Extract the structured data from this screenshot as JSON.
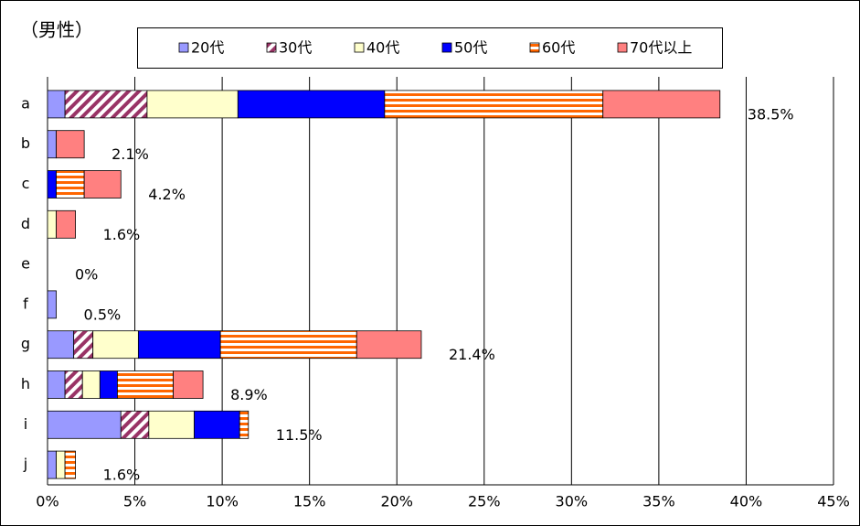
{
  "chart_data": {
    "type": "stacked-bar-horizontal",
    "title": "（男性）",
    "categories": [
      "a",
      "b",
      "c",
      "d",
      "e",
      "f",
      "g",
      "h",
      "i",
      "j"
    ],
    "series": [
      {
        "name": "20代",
        "color": "#9999ff",
        "pattern": "solid",
        "values": [
          1.0,
          0.5,
          0,
          0,
          0,
          0.5,
          1.5,
          1.0,
          4.2,
          0.5
        ]
      },
      {
        "name": "30代",
        "color": "#993366",
        "pattern": "diagonal",
        "values": [
          4.7,
          0,
          0,
          0,
          0,
          0,
          1.1,
          1.0,
          1.6,
          0
        ]
      },
      {
        "name": "40代",
        "color": "#ffffcc",
        "pattern": "solid",
        "values": [
          5.2,
          0,
          0,
          0.5,
          0,
          0,
          2.6,
          1.0,
          2.6,
          0.5
        ]
      },
      {
        "name": "50代",
        "color": "#0000ff",
        "pattern": "solid",
        "values": [
          8.4,
          0,
          0.5,
          0,
          0,
          0,
          4.7,
          1.0,
          2.6,
          0
        ]
      },
      {
        "name": "60代",
        "color": "#ff6600",
        "pattern": "horizontal",
        "values": [
          12.5,
          0,
          1.6,
          0,
          0,
          0,
          7.8,
          3.2,
          0.5,
          0.6
        ]
      },
      {
        "name": "70代以上",
        "color": "#ff8080",
        "pattern": "solid",
        "values": [
          6.7,
          1.6,
          2.1,
          1.1,
          0,
          0,
          3.7,
          1.7,
          0,
          0
        ]
      }
    ],
    "totals": [
      38.5,
      2.1,
      4.2,
      1.6,
      0,
      0.5,
      21.4,
      8.9,
      11.5,
      1.6
    ],
    "total_labels": [
      "38.5%",
      "2.1%",
      "4.2%",
      "1.6%",
      "0%",
      "0.5%",
      "21.4%",
      "8.9%",
      "11.5%",
      "1.6%"
    ],
    "xlim": [
      0,
      45
    ],
    "xticks": [
      {
        "value": 0,
        "label": "0%"
      },
      {
        "value": 5,
        "label": "5%"
      },
      {
        "value": 10,
        "label": "10%"
      },
      {
        "value": 15,
        "label": "15%"
      },
      {
        "value": 20,
        "label": "20%"
      },
      {
        "value": 25,
        "label": "25%"
      },
      {
        "value": 30,
        "label": "30%"
      },
      {
        "value": 35,
        "label": "35%"
      },
      {
        "value": 40,
        "label": "40%"
      },
      {
        "value": 45,
        "label": "45%"
      }
    ],
    "grid": true
  }
}
